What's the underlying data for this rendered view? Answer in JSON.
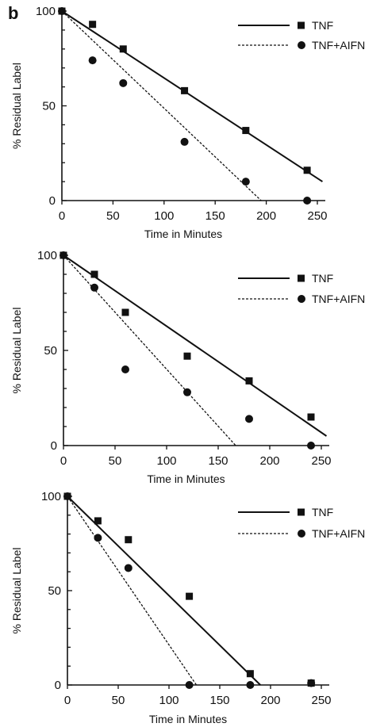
{
  "panel_label": "b",
  "chart_data": [
    {
      "type": "scatter",
      "title": "",
      "xlabel": "Time in Minutes",
      "ylabel": "% Residual Label",
      "xlim": [
        0,
        250
      ],
      "ylim": [
        0,
        100
      ],
      "xticks": [
        0,
        50,
        100,
        150,
        200,
        250
      ],
      "yticks": [
        0,
        50,
        100
      ],
      "legend_position": "top-right",
      "series": [
        {
          "name": "TNF",
          "marker": "square",
          "line": "solid",
          "x": [
            0,
            30,
            60,
            120,
            180,
            240
          ],
          "y": [
            100,
            93,
            80,
            58,
            37,
            16
          ],
          "fit": {
            "x": [
              0,
              255
            ],
            "y": [
              100,
              10
            ]
          }
        },
        {
          "name": "TNF+AIFN",
          "marker": "circle",
          "line": "dashed",
          "x": [
            0,
            30,
            60,
            120,
            180,
            240
          ],
          "y": [
            100,
            74,
            62,
            31,
            10,
            0
          ],
          "fit": {
            "x": [
              0,
              195
            ],
            "y": [
              100,
              0
            ]
          }
        }
      ]
    },
    {
      "type": "scatter",
      "title": "",
      "xlabel": "Time in Minutes",
      "ylabel": "% Residual Label",
      "xlim": [
        0,
        250
      ],
      "ylim": [
        0,
        100
      ],
      "xticks": [
        0,
        50,
        100,
        150,
        200,
        250
      ],
      "yticks": [
        0,
        50,
        100
      ],
      "legend_position": "top-right",
      "series": [
        {
          "name": "TNF",
          "marker": "square",
          "line": "solid",
          "x": [
            0,
            30,
            60,
            120,
            180,
            240
          ],
          "y": [
            100,
            90,
            70,
            47,
            34,
            15
          ],
          "fit": {
            "x": [
              0,
              255
            ],
            "y": [
              100,
              5
            ]
          }
        },
        {
          "name": "TNF+AIFN",
          "marker": "circle",
          "line": "dashed",
          "x": [
            0,
            30,
            60,
            120,
            180,
            240
          ],
          "y": [
            100,
            83,
            40,
            28,
            14,
            0
          ],
          "fit": {
            "x": [
              0,
              167
            ],
            "y": [
              100,
              0
            ]
          }
        }
      ]
    },
    {
      "type": "scatter",
      "title": "",
      "xlabel": "Time in Minutes",
      "ylabel": "% Residual Label",
      "xlim": [
        0,
        250
      ],
      "ylim": [
        0,
        100
      ],
      "xticks": [
        0,
        50,
        100,
        150,
        200,
        250
      ],
      "yticks": [
        0,
        50,
        100
      ],
      "legend_position": "top-right",
      "series": [
        {
          "name": "TNF",
          "marker": "square",
          "line": "solid",
          "x": [
            0,
            30,
            60,
            120,
            180,
            240
          ],
          "y": [
            100,
            87,
            77,
            47,
            6,
            1
          ],
          "fit": {
            "x": [
              0,
              190
            ],
            "y": [
              100,
              0
            ]
          }
        },
        {
          "name": "TNF+AIFN",
          "marker": "circle",
          "line": "dashed",
          "x": [
            0,
            30,
            60,
            120,
            180,
            240
          ],
          "y": [
            100,
            78,
            62,
            0,
            0,
            1
          ],
          "fit": {
            "x": [
              0,
              127
            ],
            "y": [
              100,
              0
            ]
          }
        }
      ]
    }
  ]
}
